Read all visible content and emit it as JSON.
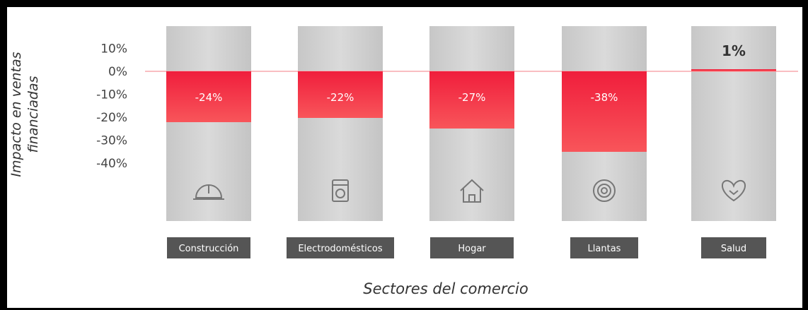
{
  "chart_data": {
    "type": "bar",
    "ylabel": "Impacto en ventas financiadas",
    "xlabel": "Sectores del comercio",
    "yticks": [
      "10%",
      "0%",
      "-10%",
      "-20%",
      "-30%",
      "-40%"
    ],
    "ylim": [
      -40,
      10
    ],
    "categories": [
      "Construcción",
      "Electrodomésticos",
      "Hogar",
      "Llantas",
      "Salud"
    ],
    "values": [
      -24,
      -22,
      -27,
      -38,
      1
    ],
    "value_labels": [
      "-24%",
      "-22%",
      "-27%",
      "-38%",
      "1%"
    ],
    "icons": [
      "hard-hat-icon",
      "appliance-icon",
      "house-icon",
      "tire-icon",
      "heart-hand-icon"
    ],
    "colors": {
      "negative": "#f4333f",
      "positive": "#f4333f",
      "track": "#d3d3d3",
      "label_bg": "#555555",
      "zero_line": "#f7a9ad"
    }
  }
}
